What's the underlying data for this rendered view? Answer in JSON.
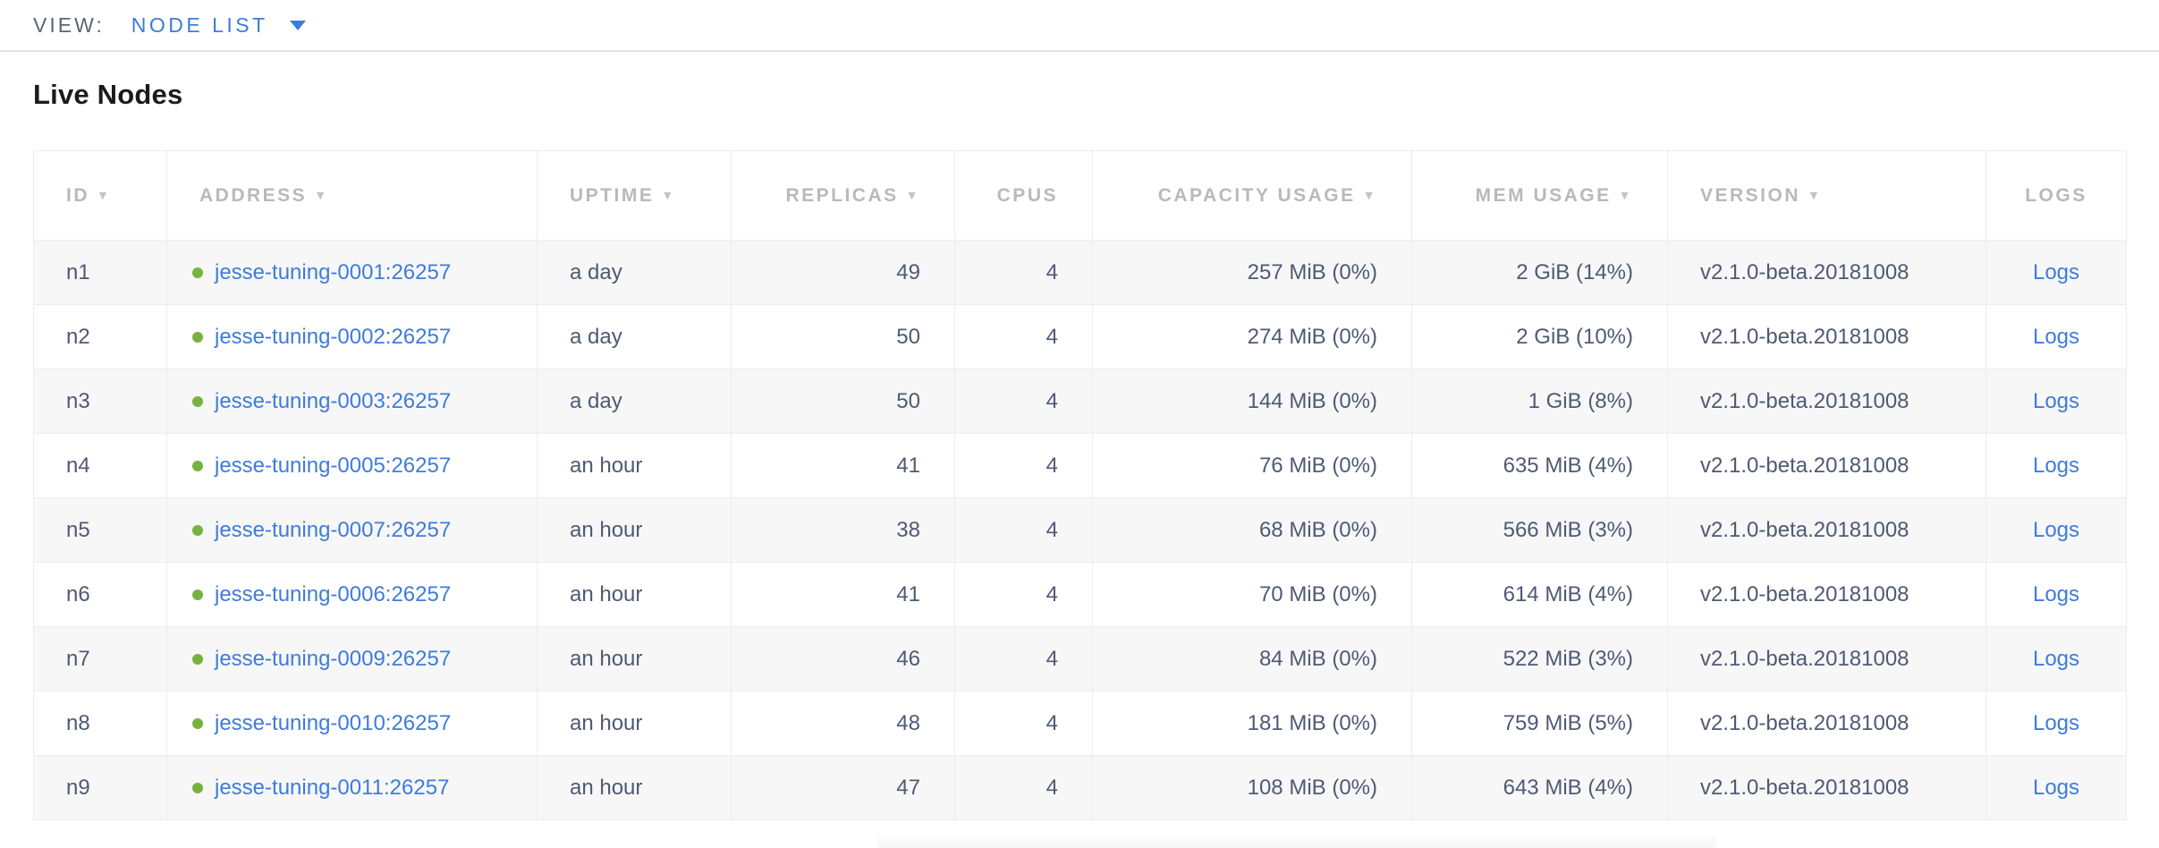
{
  "view_bar": {
    "label": "VIEW:",
    "selected": "NODE LIST"
  },
  "page": {
    "title": "Live Nodes"
  },
  "colors": {
    "accent_blue": "#3e7cd9",
    "healthy_green": "#77b23e",
    "header_gray": "#b9b9bc",
    "cell_text": "#4e5a73",
    "stripe": "#f7f7f7"
  },
  "icons": {
    "sort_arrow": "▼",
    "view_caret": "caret-down",
    "node_status": "green-dot"
  },
  "table": {
    "columns": [
      {
        "key": "id",
        "label": "ID",
        "sortable": true
      },
      {
        "key": "address",
        "label": "ADDRESS",
        "sortable": true
      },
      {
        "key": "uptime",
        "label": "UPTIME",
        "sortable": true
      },
      {
        "key": "replicas",
        "label": "REPLICAS",
        "sortable": true
      },
      {
        "key": "cpus",
        "label": "CPUS",
        "sortable": false
      },
      {
        "key": "capacity",
        "label": "CAPACITY USAGE",
        "sortable": true
      },
      {
        "key": "mem",
        "label": "MEM USAGE",
        "sortable": true
      },
      {
        "key": "version",
        "label": "VERSION",
        "sortable": true
      },
      {
        "key": "logs",
        "label": "LOGS",
        "sortable": false
      }
    ],
    "rows": [
      {
        "id": "n1",
        "status": "healthy",
        "address": "jesse-tuning-0001:26257",
        "uptime": "a day",
        "replicas": "49",
        "cpus": "4",
        "capacity": "257 MiB (0%)",
        "mem": "2 GiB (14%)",
        "version": "v2.1.0-beta.20181008",
        "logs": "Logs"
      },
      {
        "id": "n2",
        "status": "healthy",
        "address": "jesse-tuning-0002:26257",
        "uptime": "a day",
        "replicas": "50",
        "cpus": "4",
        "capacity": "274 MiB (0%)",
        "mem": "2 GiB (10%)",
        "version": "v2.1.0-beta.20181008",
        "logs": "Logs"
      },
      {
        "id": "n3",
        "status": "healthy",
        "address": "jesse-tuning-0003:26257",
        "uptime": "a day",
        "replicas": "50",
        "cpus": "4",
        "capacity": "144 MiB (0%)",
        "mem": "1 GiB (8%)",
        "version": "v2.1.0-beta.20181008",
        "logs": "Logs"
      },
      {
        "id": "n4",
        "status": "healthy",
        "address": "jesse-tuning-0005:26257",
        "uptime": "an hour",
        "replicas": "41",
        "cpus": "4",
        "capacity": "76 MiB (0%)",
        "mem": "635 MiB (4%)",
        "version": "v2.1.0-beta.20181008",
        "logs": "Logs"
      },
      {
        "id": "n5",
        "status": "healthy",
        "address": "jesse-tuning-0007:26257",
        "uptime": "an hour",
        "replicas": "38",
        "cpus": "4",
        "capacity": "68 MiB (0%)",
        "mem": "566 MiB (3%)",
        "version": "v2.1.0-beta.20181008",
        "logs": "Logs"
      },
      {
        "id": "n6",
        "status": "healthy",
        "address": "jesse-tuning-0006:26257",
        "uptime": "an hour",
        "replicas": "41",
        "cpus": "4",
        "capacity": "70 MiB (0%)",
        "mem": "614 MiB (4%)",
        "version": "v2.1.0-beta.20181008",
        "logs": "Logs"
      },
      {
        "id": "n7",
        "status": "healthy",
        "address": "jesse-tuning-0009:26257",
        "uptime": "an hour",
        "replicas": "46",
        "cpus": "4",
        "capacity": "84 MiB (0%)",
        "mem": "522 MiB (3%)",
        "version": "v2.1.0-beta.20181008",
        "logs": "Logs"
      },
      {
        "id": "n8",
        "status": "healthy",
        "address": "jesse-tuning-0010:26257",
        "uptime": "an hour",
        "replicas": "48",
        "cpus": "4",
        "capacity": "181 MiB (0%)",
        "mem": "759 MiB (5%)",
        "version": "v2.1.0-beta.20181008",
        "logs": "Logs"
      },
      {
        "id": "n9",
        "status": "healthy",
        "address": "jesse-tuning-0011:26257",
        "uptime": "an hour",
        "replicas": "47",
        "cpus": "4",
        "capacity": "108 MiB (0%)",
        "mem": "643 MiB (4%)",
        "version": "v2.1.0-beta.20181008",
        "logs": "Logs"
      }
    ]
  }
}
